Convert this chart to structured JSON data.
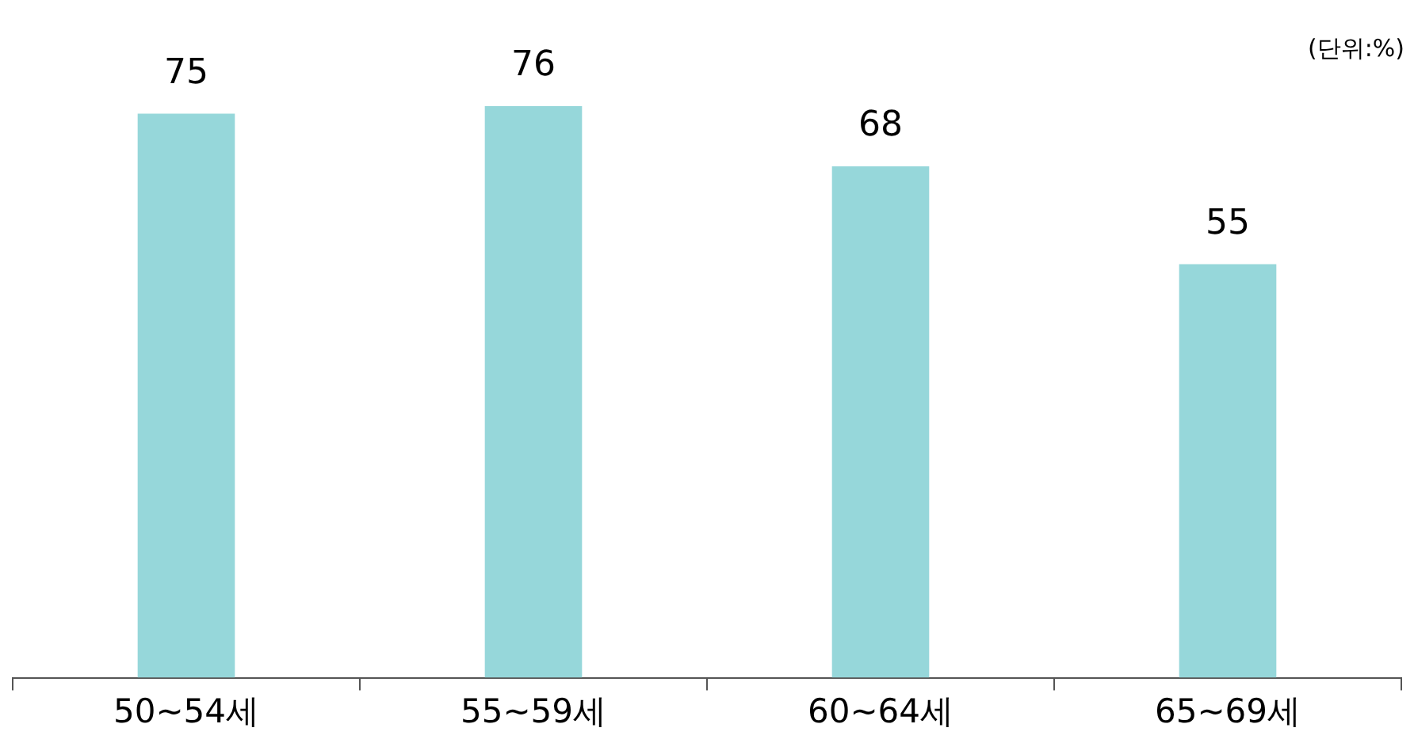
{
  "chart_data": {
    "type": "bar",
    "categories": [
      "50~54세",
      "55~59세",
      "60~64세",
      "65~69세"
    ],
    "values": [
      75,
      76,
      68,
      55
    ],
    "color": "#96d7da",
    "data_labels": true,
    "grid": false,
    "legend": false,
    "annotations": [
      "(단위:%)"
    ]
  }
}
